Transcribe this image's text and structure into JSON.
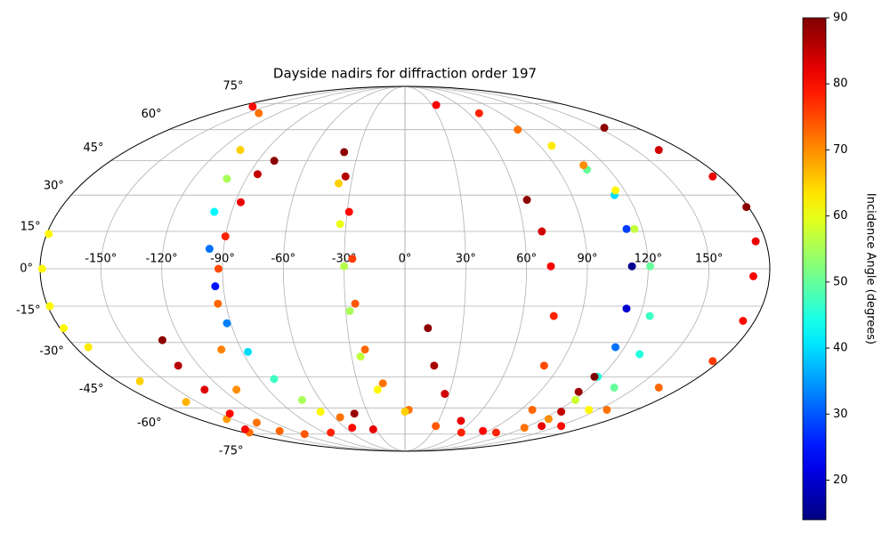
{
  "chart_data": {
    "type": "scatter",
    "projection": "mollweide",
    "colormap": "jet",
    "title": "Dayside nadirs for diffraction order 197",
    "colorbar_label": "Incidence Angle (degrees)",
    "clim": [
      14,
      90
    ],
    "cticks": [
      20,
      30,
      40,
      50,
      60,
      70,
      80,
      90
    ],
    "xlim": [
      -180,
      180
    ],
    "ylim": [
      -90,
      90
    ],
    "grid": true,
    "xticks": [
      {
        "value": -150,
        "label": "-150°"
      },
      {
        "value": -120,
        "label": "-120°"
      },
      {
        "value": -90,
        "label": "-90°"
      },
      {
        "value": -60,
        "label": "-60°"
      },
      {
        "value": -30,
        "label": "-30°"
      },
      {
        "value": 0,
        "label": "0°"
      },
      {
        "value": 30,
        "label": "30°"
      },
      {
        "value": 60,
        "label": "60°"
      },
      {
        "value": 90,
        "label": "90°"
      },
      {
        "value": 120,
        "label": "120°"
      },
      {
        "value": 150,
        "label": "150°"
      }
    ],
    "yticks": [
      {
        "value": -75,
        "label": "-75°"
      },
      {
        "value": -60,
        "label": "-60°"
      },
      {
        "value": -45,
        "label": "-45°"
      },
      {
        "value": -30,
        "label": "-30°"
      },
      {
        "value": -15,
        "label": "-15°"
      },
      {
        "value": 0,
        "label": "0°"
      },
      {
        "value": 15,
        "label": "15°"
      },
      {
        "value": 30,
        "label": "30°"
      },
      {
        "value": 45,
        "label": "45°"
      },
      {
        "value": 60,
        "label": "60°"
      },
      {
        "value": 75,
        "label": "75°"
      }
    ],
    "series": [
      {
        "x": [
          -179,
          -179,
          -179,
          -178,
          -173,
          -166,
          -158,
          -155,
          -174
        ],
        "y": [
          14,
          0,
          -15,
          -24,
          -32,
          -47,
          -57,
          -66,
          -74
        ],
        "values": [
          62,
          62,
          62,
          62,
          63,
          65,
          67,
          69,
          72
        ]
      },
      {
        "x": [
          -164,
          -138,
          -107,
          -101,
          -99,
          -97,
          -94,
          -92,
          -87,
          -81,
          -73,
          -67,
          -55,
          -41
        ],
        "y": [
          73,
          69,
          50,
          37,
          23,
          8,
          -7,
          -22,
          -34,
          -46,
          -56,
          -62,
          -65,
          -63
        ],
        "values": [
          80,
          72,
          65,
          55,
          42,
          32,
          25,
          33,
          40,
          47,
          55,
          62,
          72,
          88
        ]
      },
      {
        "x": [
          -80,
          -85,
          -87,
          -90,
          -92,
          -94,
          -101,
          -111,
          -136,
          -135,
          -117,
          -83,
          -53,
          -33
        ],
        "y": [
          45,
          39,
          27,
          13,
          0,
          -14,
          -33,
          -51,
          -68,
          -73,
          -75,
          -74,
          -71,
          -72
        ],
        "values": [
          89,
          85,
          82,
          78,
          75,
          73,
          71,
          70,
          72,
          73,
          74,
          78,
          80,
          82
        ]
      },
      {
        "x": [
          -130,
          -132,
          -132,
          -142,
          -166
        ],
        "y": [
          -29,
          -40,
          -51,
          -63,
          -72
        ],
        "values": [
          89,
          86,
          83,
          80,
          80
        ]
      },
      {
        "x": [
          -39,
          -34,
          -29,
          -26,
          -25,
          -22,
          -14,
          3,
          30,
          63,
          102
        ],
        "y": [
          49,
          38,
          23,
          4,
          -14,
          -33,
          -48,
          -61,
          -70,
          -74,
          -74
        ],
        "values": [
          89,
          86,
          80,
          76,
          74,
          73,
          72,
          72,
          74,
          78,
          78
        ]
      },
      {
        "x": [
          -37,
          -33,
          -30,
          -28,
          -25,
          -18,
          0
        ],
        "y": [
          35,
          18,
          1,
          -17,
          -36,
          -51,
          -62
        ],
        "values": [
          65,
          60,
          56,
          55,
          57,
          62,
          65
        ]
      },
      {
        "x": [
          12,
          17,
          27,
          50,
          84
        ],
        "y": [
          -24,
          -40,
          -53,
          -67,
          -73
        ],
        "values": [
          89,
          87,
          84,
          82,
          80
        ]
      },
      {
        "x": [
          65,
          69,
          72,
          76,
          81,
          99,
          120
        ],
        "y": [
          28,
          15,
          1,
          -19,
          -40,
          -61,
          -71
        ],
        "values": [
          89,
          84,
          81,
          78,
          75,
          73,
          72
        ]
      },
      {
        "x": [
          35,
          70,
          86,
          98,
          107,
          113,
          112,
          112,
          112,
          115,
          118,
          121,
          125
        ],
        "y": [
          74,
          69,
          60,
          52,
          41,
          30,
          16,
          1,
          -16,
          -32,
          -45,
          -56,
          -66
        ],
        "values": [
          81,
          78,
          72,
          63,
          50,
          40,
          28,
          15,
          20,
          32,
          45,
          58,
          70
        ]
      },
      {
        "x": [
          107,
          115,
          116,
          121,
          125,
          131,
          136,
          143
        ],
        "y": [
          43,
          32,
          16,
          1,
          -19,
          -35,
          -50,
          -61
        ],
        "values": [
          70,
          62,
          57,
          50,
          47,
          45,
          50,
          62
        ]
      },
      {
        "x": [
          155,
          165,
          176,
          179,
          175,
          172,
          174,
          176,
          165,
          157,
          152
        ],
        "y": [
          61,
          50,
          38,
          25,
          11,
          -3,
          -21,
          -38,
          -50,
          -61,
          -70
        ],
        "values": [
          89,
          84,
          82,
          89,
          82,
          81,
          80,
          76,
          73,
          72,
          80
        ]
      },
      {
        "x": [
          116,
          116,
          124,
          133
        ],
        "y": [
          -45,
          -52,
          -62,
          -70
        ],
        "values": [
          90,
          88,
          85,
          82
        ]
      }
    ]
  }
}
